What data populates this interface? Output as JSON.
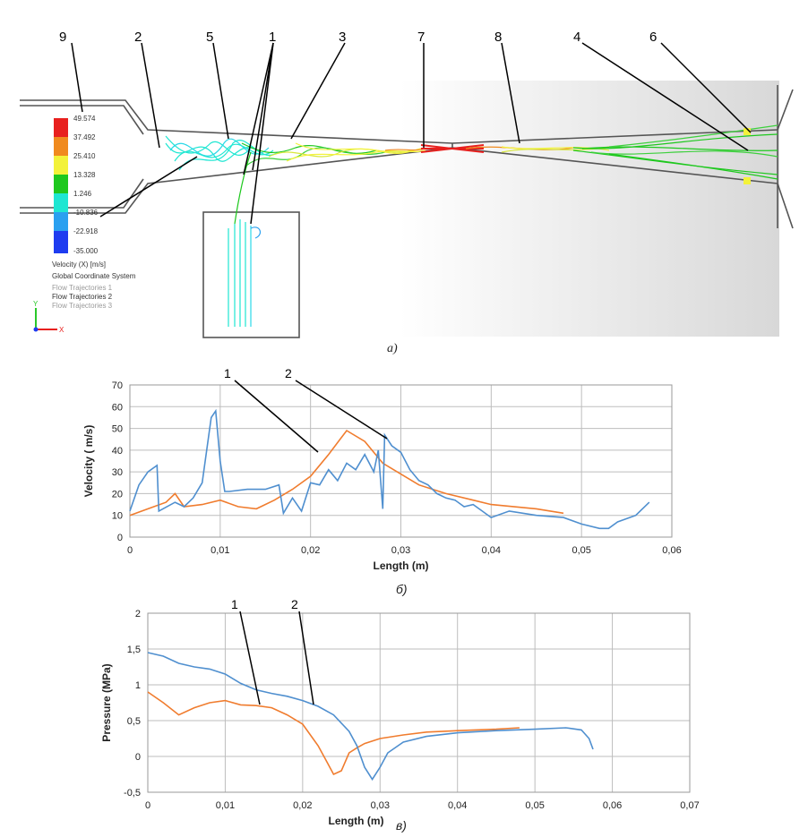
{
  "figure_a": {
    "callouts": [
      "9",
      "2",
      "5",
      "1",
      "3",
      "7",
      "8",
      "4",
      "6"
    ],
    "legend": {
      "values": [
        "49.574",
        "37.492",
        "25.410",
        "13.328",
        "1.246",
        "-10.836",
        "-22.918",
        "-35.000"
      ],
      "colors": [
        "#e8201e",
        "#f08a1e",
        "#f3f23a",
        "#1ec81e",
        "#1ee6d2",
        "#2aa0f0",
        "#1e3cf0"
      ],
      "quantity": "Velocity (X) [m/s]",
      "coordinate_system": "Global Coordinate System",
      "trajectories": [
        "Flow Trajectories 1",
        "Flow Trajectories 2",
        "Flow Trajectories 3"
      ]
    },
    "triad": {
      "y_label": "Y",
      "x_label": "X"
    },
    "caption": "a)"
  },
  "chart_data": [
    {
      "type": "line",
      "xlabel": "Length (m)",
      "ylabel": "Velocity ( m/s)",
      "xlim": [
        0,
        0.06
      ],
      "ylim": [
        0,
        70
      ],
      "x_ticks": [
        "0",
        "0,01",
        "0,02",
        "0,03",
        "0,04",
        "0,05",
        "0,06"
      ],
      "y_ticks": [
        "0",
        "10",
        "20",
        "30",
        "40",
        "50",
        "60",
        "70"
      ],
      "grid": true,
      "callouts": [
        "1",
        "2"
      ],
      "caption": "б)",
      "series": [
        {
          "color": "#f07c2e",
          "x": [
            0,
            0.002,
            0.004,
            0.005,
            0.006,
            0.008,
            0.01,
            0.012,
            0.014,
            0.016,
            0.018,
            0.02,
            0.022,
            0.024,
            0.026,
            0.028,
            0.03,
            0.032,
            0.035,
            0.038,
            0.04,
            0.045,
            0.048
          ],
          "values": [
            10,
            13,
            16,
            20,
            14,
            15,
            17,
            14,
            13,
            17,
            22,
            28,
            38,
            49,
            44,
            34,
            29,
            24,
            20,
            17,
            15,
            13,
            11
          ]
        },
        {
          "color": "#4f8fcf",
          "x": [
            0,
            0.001,
            0.002,
            0.003,
            0.0032,
            0.005,
            0.006,
            0.007,
            0.008,
            0.009,
            0.0095,
            0.01,
            0.0105,
            0.011,
            0.013,
            0.015,
            0.0165,
            0.017,
            0.018,
            0.019,
            0.02,
            0.021,
            0.022,
            0.023,
            0.024,
            0.025,
            0.026,
            0.027,
            0.0275,
            0.028,
            0.0282,
            0.029,
            0.03,
            0.031,
            0.032,
            0.033,
            0.034,
            0.035,
            0.036,
            0.037,
            0.038,
            0.039,
            0.04,
            0.042,
            0.045,
            0.048,
            0.05,
            0.052,
            0.053,
            0.054,
            0.056,
            0.0575
          ],
          "values": [
            12,
            24,
            30,
            33,
            12,
            16,
            14,
            18,
            25,
            55,
            58,
            35,
            21,
            21,
            22,
            22,
            24,
            11,
            18,
            12,
            25,
            24,
            31,
            26,
            34,
            31,
            38,
            30,
            40,
            13,
            47,
            42,
            39,
            31,
            26,
            24,
            20,
            18,
            17,
            14,
            15,
            12,
            9,
            12,
            10,
            9,
            6,
            4,
            4,
            7,
            10,
            16
          ]
        }
      ]
    },
    {
      "type": "line",
      "xlabel": "Length (m)",
      "ylabel": "Pressure  (MPa)",
      "xlim": [
        0,
        0.07
      ],
      "ylim": [
        -0.5,
        2
      ],
      "x_ticks": [
        "0",
        "0,01",
        "0,02",
        "0,03",
        "0,04",
        "0,05",
        "0,06",
        "0,07"
      ],
      "y_ticks": [
        "-0,5",
        "0",
        "0,5",
        "1",
        "1,5",
        "2"
      ],
      "grid": true,
      "callouts": [
        "1",
        "2"
      ],
      "caption": "в)",
      "series": [
        {
          "color": "#f07c2e",
          "x": [
            0,
            0.002,
            0.004,
            0.006,
            0.008,
            0.01,
            0.012,
            0.014,
            0.016,
            0.018,
            0.02,
            0.022,
            0.023,
            0.024,
            0.025,
            0.026,
            0.027,
            0.028,
            0.03,
            0.033,
            0.036,
            0.04,
            0.045,
            0.048
          ],
          "values": [
            0.9,
            0.75,
            0.58,
            0.68,
            0.75,
            0.78,
            0.72,
            0.71,
            0.68,
            0.58,
            0.45,
            0.15,
            -0.05,
            -0.25,
            -0.2,
            0.05,
            0.12,
            0.18,
            0.25,
            0.3,
            0.34,
            0.36,
            0.38,
            0.4
          ]
        },
        {
          "color": "#4f8fcf",
          "x": [
            0,
            0.002,
            0.004,
            0.006,
            0.008,
            0.01,
            0.012,
            0.014,
            0.016,
            0.018,
            0.02,
            0.022,
            0.024,
            0.026,
            0.027,
            0.028,
            0.029,
            0.03,
            0.031,
            0.033,
            0.036,
            0.04,
            0.045,
            0.05,
            0.054,
            0.056,
            0.057,
            0.0575
          ],
          "values": [
            1.45,
            1.4,
            1.3,
            1.25,
            1.22,
            1.15,
            1.02,
            0.93,
            0.88,
            0.84,
            0.78,
            0.7,
            0.58,
            0.35,
            0.15,
            -0.15,
            -0.32,
            -0.15,
            0.05,
            0.2,
            0.28,
            0.33,
            0.36,
            0.38,
            0.4,
            0.37,
            0.25,
            0.1
          ]
        }
      ]
    }
  ]
}
